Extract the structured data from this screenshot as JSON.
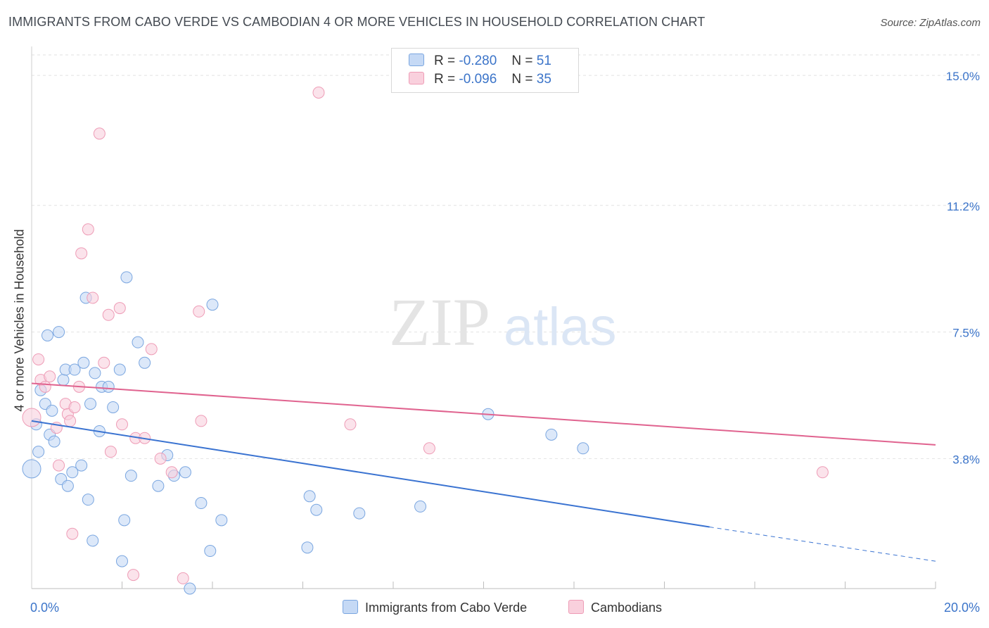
{
  "title": "IMMIGRANTS FROM CABO VERDE VS CAMBODIAN 4 OR MORE VEHICLES IN HOUSEHOLD CORRELATION CHART",
  "source": "Source: ZipAtlas.com",
  "watermark": {
    "zip": "ZIP",
    "atlas": "atlas"
  },
  "colors": {
    "blue_fill": "#c5d9f5",
    "blue_stroke": "#7aa6e0",
    "blue_line": "#3a73d1",
    "pink_fill": "#f9d0dd",
    "pink_stroke": "#ee9cb6",
    "pink_line": "#e0638f",
    "axis_text": "#3b74c9"
  },
  "legend": {
    "r_label": "R =",
    "n_label": "N =",
    "series": [
      {
        "r": "-0.280",
        "n": "51"
      },
      {
        "r": "-0.096",
        "n": "35"
      }
    ]
  },
  "chart_data": {
    "type": "scatter",
    "xlabel": "",
    "ylabel": "4 or more Vehicles in Household",
    "xlim": [
      0,
      20
    ],
    "ylim": [
      0,
      15.6
    ],
    "x_tick_labels": {
      "min": "0.0%",
      "max": "20.0%"
    },
    "y_ticks": [
      {
        "value": 3.8,
        "label": "3.8%"
      },
      {
        "value": 7.5,
        "label": "7.5%"
      },
      {
        "value": 11.2,
        "label": "11.2%"
      },
      {
        "value": 15.0,
        "label": "15.0%"
      }
    ],
    "series": [
      {
        "name": "Immigrants from Cabo Verde",
        "color": "blue",
        "trend": {
          "x0": 0,
          "y0": 4.9,
          "x1": 15.0,
          "y1": 1.8,
          "dash_to_x": 20,
          "dash_to_y": 0.8
        },
        "points": [
          {
            "x": 0.0,
            "y": 3.5,
            "big": true
          },
          {
            "x": 0.1,
            "y": 4.8
          },
          {
            "x": 0.15,
            "y": 4.0
          },
          {
            "x": 0.2,
            "y": 5.8
          },
          {
            "x": 0.3,
            "y": 5.4
          },
          {
            "x": 0.35,
            "y": 7.4
          },
          {
            "x": 0.4,
            "y": 4.5
          },
          {
            "x": 0.45,
            "y": 5.2
          },
          {
            "x": 0.5,
            "y": 4.3
          },
          {
            "x": 0.6,
            "y": 7.5
          },
          {
            "x": 0.65,
            "y": 3.2
          },
          {
            "x": 0.7,
            "y": 6.1
          },
          {
            "x": 0.75,
            "y": 6.4
          },
          {
            "x": 0.8,
            "y": 3.0
          },
          {
            "x": 0.9,
            "y": 3.4
          },
          {
            "x": 0.95,
            "y": 6.4
          },
          {
            "x": 1.1,
            "y": 3.6
          },
          {
            "x": 1.15,
            "y": 6.6
          },
          {
            "x": 1.2,
            "y": 8.5
          },
          {
            "x": 1.25,
            "y": 2.6
          },
          {
            "x": 1.3,
            "y": 5.4
          },
          {
            "x": 1.35,
            "y": 1.4
          },
          {
            "x": 1.4,
            "y": 6.3
          },
          {
            "x": 1.5,
            "y": 4.6
          },
          {
            "x": 1.55,
            "y": 5.9
          },
          {
            "x": 1.7,
            "y": 5.9
          },
          {
            "x": 1.8,
            "y": 5.3
          },
          {
            "x": 1.95,
            "y": 6.4
          },
          {
            "x": 2.0,
            "y": 0.8
          },
          {
            "x": 2.05,
            "y": 2.0
          },
          {
            "x": 2.1,
            "y": 9.1
          },
          {
            "x": 2.2,
            "y": 3.3
          },
          {
            "x": 2.35,
            "y": 7.2
          },
          {
            "x": 2.5,
            "y": 6.6
          },
          {
            "x": 2.8,
            "y": 3.0
          },
          {
            "x": 3.0,
            "y": 3.9
          },
          {
            "x": 3.15,
            "y": 3.3
          },
          {
            "x": 3.4,
            "y": 3.4
          },
          {
            "x": 3.5,
            "y": 0.0
          },
          {
            "x": 3.75,
            "y": 2.5
          },
          {
            "x": 3.95,
            "y": 1.1
          },
          {
            "x": 4.0,
            "y": 8.3
          },
          {
            "x": 4.2,
            "y": 2.0
          },
          {
            "x": 6.1,
            "y": 1.2
          },
          {
            "x": 6.15,
            "y": 2.7
          },
          {
            "x": 6.3,
            "y": 2.3
          },
          {
            "x": 7.25,
            "y": 2.2
          },
          {
            "x": 8.6,
            "y": 2.4
          },
          {
            "x": 10.1,
            "y": 5.1
          },
          {
            "x": 11.5,
            "y": 4.5
          },
          {
            "x": 12.2,
            "y": 4.1
          }
        ]
      },
      {
        "name": "Cambodians",
        "color": "pink",
        "trend": {
          "x0": 0,
          "y0": 6.0,
          "x1": 20,
          "y1": 4.2
        },
        "points": [
          {
            "x": 0.0,
            "y": 5.0,
            "big": true
          },
          {
            "x": 0.15,
            "y": 6.7
          },
          {
            "x": 0.2,
            "y": 6.1
          },
          {
            "x": 0.3,
            "y": 5.9
          },
          {
            "x": 0.4,
            "y": 6.2
          },
          {
            "x": 0.55,
            "y": 4.7
          },
          {
            "x": 0.6,
            "y": 3.6
          },
          {
            "x": 0.75,
            "y": 5.4
          },
          {
            "x": 0.8,
            "y": 5.1
          },
          {
            "x": 0.85,
            "y": 4.9
          },
          {
            "x": 0.9,
            "y": 1.6
          },
          {
            "x": 0.95,
            "y": 5.3
          },
          {
            "x": 1.05,
            "y": 5.9
          },
          {
            "x": 1.1,
            "y": 9.8
          },
          {
            "x": 1.25,
            "y": 10.5
          },
          {
            "x": 1.35,
            "y": 8.5
          },
          {
            "x": 1.5,
            "y": 13.3
          },
          {
            "x": 1.6,
            "y": 6.6
          },
          {
            "x": 1.7,
            "y": 8.0
          },
          {
            "x": 1.75,
            "y": 4.0
          },
          {
            "x": 1.95,
            "y": 8.2
          },
          {
            "x": 2.0,
            "y": 4.8
          },
          {
            "x": 2.25,
            "y": 0.4
          },
          {
            "x": 2.3,
            "y": 4.4
          },
          {
            "x": 2.5,
            "y": 4.4
          },
          {
            "x": 2.65,
            "y": 7.0
          },
          {
            "x": 2.85,
            "y": 3.8
          },
          {
            "x": 3.1,
            "y": 3.4
          },
          {
            "x": 3.35,
            "y": 0.3
          },
          {
            "x": 3.7,
            "y": 8.1
          },
          {
            "x": 3.75,
            "y": 4.9
          },
          {
            "x": 6.35,
            "y": 14.5
          },
          {
            "x": 7.05,
            "y": 4.8
          },
          {
            "x": 8.8,
            "y": 4.1
          },
          {
            "x": 17.5,
            "y": 3.4
          }
        ]
      }
    ]
  }
}
